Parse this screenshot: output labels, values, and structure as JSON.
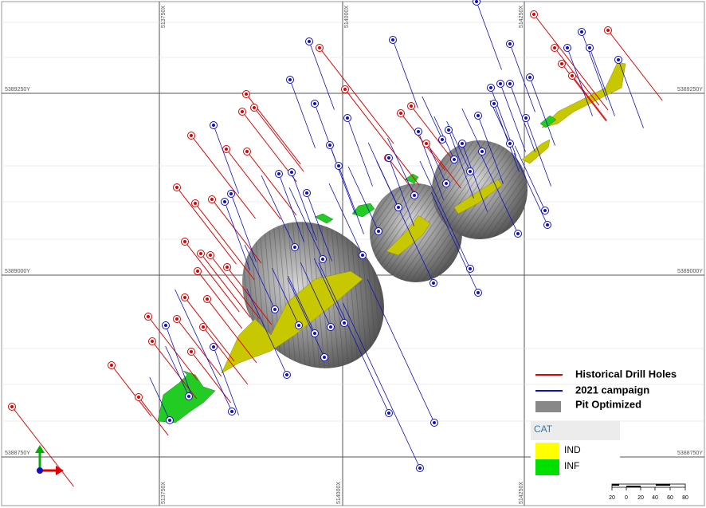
{
  "grid": {
    "top_labels": [
      "513750X",
      "514000X",
      "514250X"
    ],
    "bottom_labels": [
      "513750X",
      "514000X",
      "514250X"
    ],
    "left_labels": [
      "5389250Y",
      "5389000Y",
      "5388750Y"
    ],
    "right_labels": [
      "5389250Y",
      "5389000Y",
      "5388750Y"
    ]
  },
  "legend": {
    "items": [
      {
        "label": "Historical Drill Holes",
        "color": "#e00000"
      },
      {
        "label": "2021 campaign",
        "color": "#1010c0"
      },
      {
        "label": "Pit Optimized",
        "color": "#888888"
      }
    ]
  },
  "cat_legend": {
    "title": "CAT",
    "items": [
      {
        "label": "IND",
        "color": "#ffff00"
      },
      {
        "label": "INF",
        "color": "#00e000"
      }
    ]
  },
  "scale_bar": {
    "labels": [
      "20",
      "0",
      "20",
      "40",
      "60",
      "80"
    ]
  }
}
